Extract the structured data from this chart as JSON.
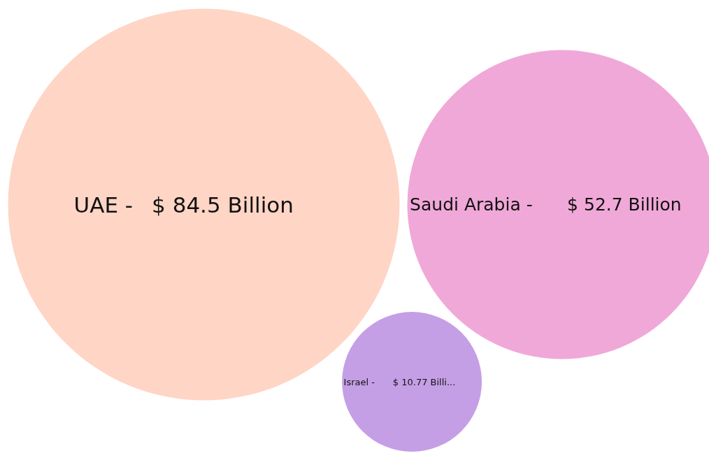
{
  "chart_data": {
    "type": "other",
    "values": [
      84.5,
      52.7,
      10.77
    ],
    "colors": [
      "#ffd5c5",
      "#f0a8d8",
      "#c59fe5"
    ],
    "categories": [
      "UAE -",
      "Saudi Arabia -",
      "Israel -"
    ],
    "value_labels": [
      "$ 84.5 Billion",
      "$ 52.7 Billion",
      "$ 10.77 Billi..."
    ]
  }
}
